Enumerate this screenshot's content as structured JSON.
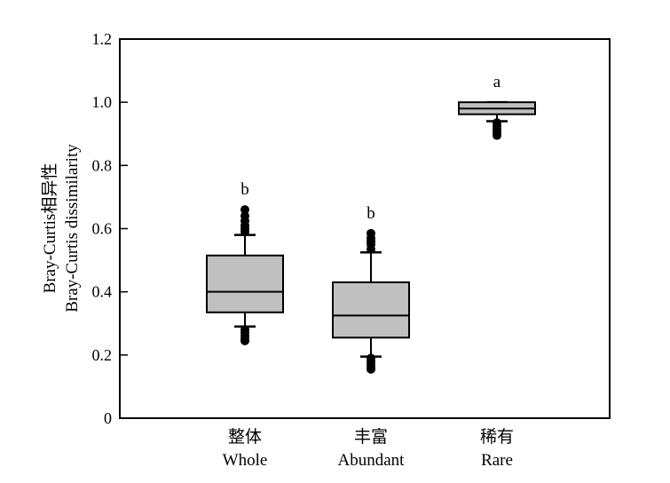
{
  "chart_data": {
    "type": "box",
    "ylabel_cn": "Bray-Curtis相异性",
    "ylabel_en": "Bray-Curtis dissimilarity",
    "ylim": [
      0,
      1.2
    ],
    "yticks": [
      "0",
      "0.2",
      "0.4",
      "0.6",
      "0.8",
      "1.0",
      "1.2"
    ],
    "ytick_values": [
      0,
      0.2,
      0.4,
      0.6,
      0.8,
      1.0,
      1.2
    ],
    "grid": false,
    "box_color": "#c0c0c0",
    "categories": [
      {
        "label_cn": "整体",
        "label_en": "Whole",
        "letter": "b",
        "whisker_low": 0.29,
        "q1": 0.335,
        "median": 0.4,
        "q3": 0.515,
        "whisker_high": 0.58,
        "outliers_low": [
          0.28,
          0.27,
          0.26,
          0.25,
          0.245
        ],
        "outliers_high": [
          0.59,
          0.6,
          0.61,
          0.625,
          0.64,
          0.66
        ]
      },
      {
        "label_cn": "丰富",
        "label_en": "Abundant",
        "letter": "b",
        "whisker_low": 0.195,
        "q1": 0.255,
        "median": 0.325,
        "q3": 0.43,
        "whisker_high": 0.525,
        "outliers_low": [
          0.19,
          0.18,
          0.17,
          0.16,
          0.155
        ],
        "outliers_high": [
          0.535,
          0.55,
          0.56,
          0.57,
          0.585
        ]
      },
      {
        "label_cn": "稀有",
        "label_en": "Rare",
        "letter": "a",
        "whisker_low": 0.94,
        "q1": 0.962,
        "median": 0.98,
        "q3": 1.0,
        "whisker_high": 1.0,
        "outliers_low": [
          0.935,
          0.925,
          0.915,
          0.905,
          0.895
        ],
        "outliers_high": []
      }
    ]
  }
}
